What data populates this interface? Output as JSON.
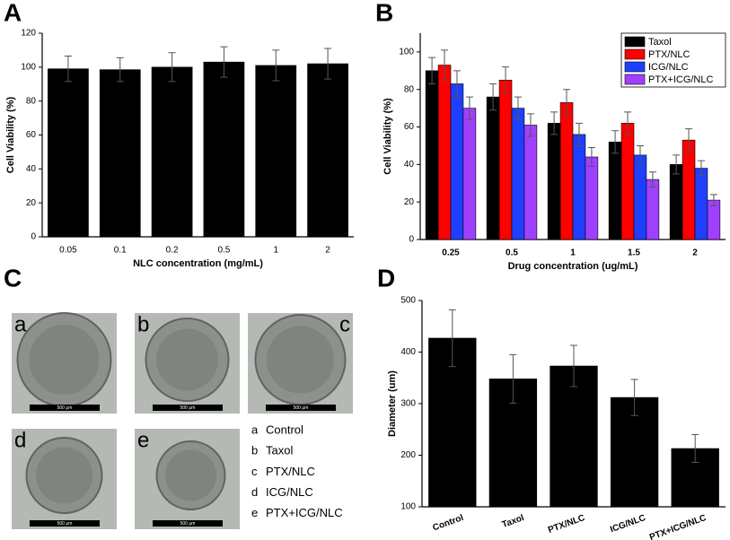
{
  "chart_data": [
    {
      "label": "A",
      "type": "bar",
      "x_label": "NLC concentration (mg/mL)",
      "y_label": "Cell Viability (%)",
      "categories": [
        "0.05",
        "0.1",
        "0.2",
        "0.5",
        "1",
        "2"
      ],
      "series": [
        {
          "color": "#000000",
          "values": [
            99,
            98.5,
            100,
            103,
            101,
            102
          ],
          "errors": [
            7.5,
            7,
            8.5,
            9,
            9,
            9
          ]
        }
      ],
      "ylim": [
        0,
        120
      ],
      "yticks": [
        0,
        20,
        40,
        60,
        80,
        100,
        120
      ]
    },
    {
      "label": "B",
      "type": "bar",
      "x_label": "Drug concentration (ug/mL)",
      "y_label": "Cell Viability (%)",
      "categories": [
        "0.25",
        "0.5",
        "1",
        "1.5",
        "2"
      ],
      "series": [
        {
          "name": "Taxol",
          "color": "#000000",
          "values": [
            90,
            76,
            62,
            52,
            40
          ],
          "errors": [
            7,
            7,
            6,
            6,
            5
          ]
        },
        {
          "name": "PTX/NLC",
          "color": "#ff0000",
          "values": [
            93,
            85,
            73,
            62,
            53
          ],
          "errors": [
            8,
            7,
            7,
            6,
            6
          ]
        },
        {
          "name": "ICG/NLC",
          "color": "#1f3fff",
          "values": [
            83,
            70,
            56,
            45,
            38
          ],
          "errors": [
            7,
            6,
            6,
            5,
            4
          ]
        },
        {
          "name": "PTX+ICG/NLC",
          "color": "#a040ff",
          "values": [
            70,
            61,
            44,
            32,
            21
          ],
          "errors": [
            6,
            6,
            5,
            4,
            3
          ]
        }
      ],
      "ylim": [
        0,
        110
      ],
      "yticks": [
        0,
        20,
        40,
        60,
        80,
        100
      ],
      "legend": "upper right"
    },
    {
      "label": "D",
      "type": "bar",
      "y_label": "Diameter (um)",
      "categories": [
        "Control",
        "Taxol",
        "PTX/NLC",
        "ICG/NLC",
        "PTX+ICG/NLC"
      ],
      "series": [
        {
          "color": "#000000",
          "values": [
            427,
            348,
            373,
            312,
            213
          ],
          "errors": [
            55,
            47,
            40,
            35,
            27
          ]
        }
      ],
      "ylim": [
        100,
        500
      ],
      "yticks": [
        100,
        200,
        300,
        400,
        500
      ],
      "xtick_rotation": -20
    }
  ],
  "image_panel": {
    "label": "C",
    "images": [
      {
        "letter": "a",
        "scale": "500 μm"
      },
      {
        "letter": "b",
        "scale": "500 μm"
      },
      {
        "letter": "c",
        "scale": "500 μm"
      },
      {
        "letter": "d",
        "scale": "500 μm"
      },
      {
        "letter": "e",
        "scale": "500 μm"
      }
    ],
    "legend": [
      {
        "letter": "a",
        "label": "Control"
      },
      {
        "letter": "b",
        "label": "Taxol"
      },
      {
        "letter": "c",
        "label": "PTX/NLC"
      },
      {
        "letter": "d",
        "label": "ICG/NLC"
      },
      {
        "letter": "e",
        "label": "PTX+ICG/NLC"
      }
    ]
  }
}
